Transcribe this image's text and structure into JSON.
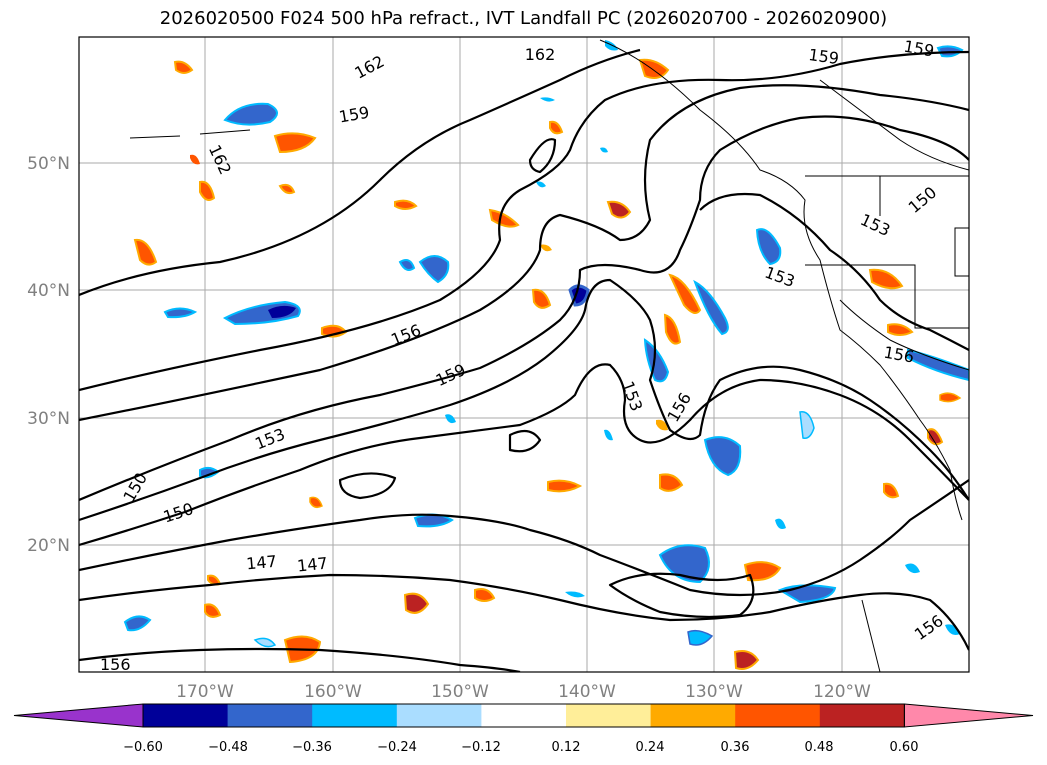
{
  "title": "2026020500 F024 500 hPa refract., IVT Landfall PC (2026020700 - 2026020900)",
  "map": {
    "lat_labels": [
      "50°N",
      "40°N",
      "30°N",
      "20°N"
    ],
    "lon_labels": [
      "170°W",
      "160°W",
      "150°W",
      "140°W",
      "130°W",
      "120°W"
    ],
    "gridlines": true
  },
  "contours": {
    "color": "#000000",
    "labels": [
      "162",
      "159",
      "162",
      "159",
      "159",
      "162",
      "150",
      "153",
      "153",
      "156",
      "159",
      "153",
      "156",
      "156",
      "150",
      "153",
      "150",
      "147",
      "147",
      "156",
      "156"
    ]
  },
  "colorbar": {
    "colors": [
      "#9933cc",
      "#000099",
      "#3366cc",
      "#00bbff",
      "#aaddff",
      "#ffffff",
      "#ffee99",
      "#ffaa00",
      "#ff5500",
      "#bb2222",
      "#ff88aa"
    ],
    "tick_labels": [
      "−0.60",
      "−0.48",
      "−0.36",
      "−0.24",
      "−0.12",
      "0.12",
      "0.24",
      "0.36",
      "0.48",
      "0.60"
    ]
  }
}
